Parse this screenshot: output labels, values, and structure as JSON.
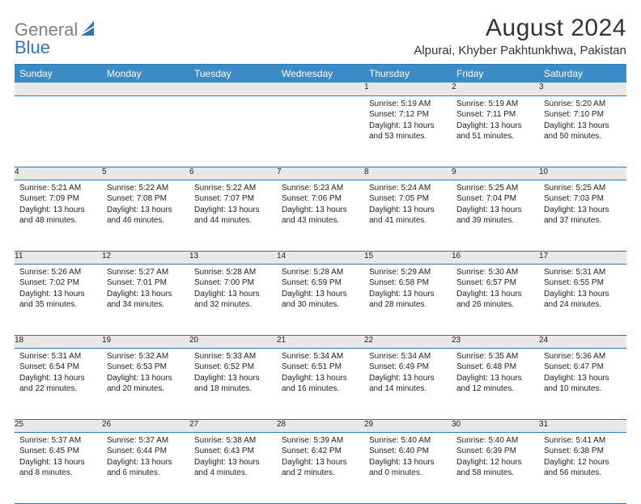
{
  "logo": {
    "text_gray": "General",
    "text_blue": "Blue"
  },
  "header": {
    "month_title": "August 2024",
    "location": "Alpurai, Khyber Pakhtunkhwa, Pakistan"
  },
  "colors": {
    "header_bg": "#3b8bc7",
    "header_border": "#2f75b5",
    "daynum_bg": "#e8e8e8",
    "logo_blue": "#2f75b5",
    "logo_gray": "#808080"
  },
  "day_headers": [
    "Sunday",
    "Monday",
    "Tuesday",
    "Wednesday",
    "Thursday",
    "Friday",
    "Saturday"
  ],
  "weeks": [
    {
      "nums": [
        "",
        "",
        "",
        "",
        "1",
        "2",
        "3"
      ],
      "cells": [
        null,
        null,
        null,
        null,
        {
          "sunrise": "Sunrise: 5:19 AM",
          "sunset": "Sunset: 7:12 PM",
          "daylight": "Daylight: 13 hours and 53 minutes."
        },
        {
          "sunrise": "Sunrise: 5:19 AM",
          "sunset": "Sunset: 7:11 PM",
          "daylight": "Daylight: 13 hours and 51 minutes."
        },
        {
          "sunrise": "Sunrise: 5:20 AM",
          "sunset": "Sunset: 7:10 PM",
          "daylight": "Daylight: 13 hours and 50 minutes."
        }
      ]
    },
    {
      "nums": [
        "4",
        "5",
        "6",
        "7",
        "8",
        "9",
        "10"
      ],
      "cells": [
        {
          "sunrise": "Sunrise: 5:21 AM",
          "sunset": "Sunset: 7:09 PM",
          "daylight": "Daylight: 13 hours and 48 minutes."
        },
        {
          "sunrise": "Sunrise: 5:22 AM",
          "sunset": "Sunset: 7:08 PM",
          "daylight": "Daylight: 13 hours and 46 minutes."
        },
        {
          "sunrise": "Sunrise: 5:22 AM",
          "sunset": "Sunset: 7:07 PM",
          "daylight": "Daylight: 13 hours and 44 minutes."
        },
        {
          "sunrise": "Sunrise: 5:23 AM",
          "sunset": "Sunset: 7:06 PM",
          "daylight": "Daylight: 13 hours and 43 minutes."
        },
        {
          "sunrise": "Sunrise: 5:24 AM",
          "sunset": "Sunset: 7:05 PM",
          "daylight": "Daylight: 13 hours and 41 minutes."
        },
        {
          "sunrise": "Sunrise: 5:25 AM",
          "sunset": "Sunset: 7:04 PM",
          "daylight": "Daylight: 13 hours and 39 minutes."
        },
        {
          "sunrise": "Sunrise: 5:25 AM",
          "sunset": "Sunset: 7:03 PM",
          "daylight": "Daylight: 13 hours and 37 minutes."
        }
      ]
    },
    {
      "nums": [
        "11",
        "12",
        "13",
        "14",
        "15",
        "16",
        "17"
      ],
      "cells": [
        {
          "sunrise": "Sunrise: 5:26 AM",
          "sunset": "Sunset: 7:02 PM",
          "daylight": "Daylight: 13 hours and 35 minutes."
        },
        {
          "sunrise": "Sunrise: 5:27 AM",
          "sunset": "Sunset: 7:01 PM",
          "daylight": "Daylight: 13 hours and 34 minutes."
        },
        {
          "sunrise": "Sunrise: 5:28 AM",
          "sunset": "Sunset: 7:00 PM",
          "daylight": "Daylight: 13 hours and 32 minutes."
        },
        {
          "sunrise": "Sunrise: 5:28 AM",
          "sunset": "Sunset: 6:59 PM",
          "daylight": "Daylight: 13 hours and 30 minutes."
        },
        {
          "sunrise": "Sunrise: 5:29 AM",
          "sunset": "Sunset: 6:58 PM",
          "daylight": "Daylight: 13 hours and 28 minutes."
        },
        {
          "sunrise": "Sunrise: 5:30 AM",
          "sunset": "Sunset: 6:57 PM",
          "daylight": "Daylight: 13 hours and 26 minutes."
        },
        {
          "sunrise": "Sunrise: 5:31 AM",
          "sunset": "Sunset: 6:55 PM",
          "daylight": "Daylight: 13 hours and 24 minutes."
        }
      ]
    },
    {
      "nums": [
        "18",
        "19",
        "20",
        "21",
        "22",
        "23",
        "24"
      ],
      "cells": [
        {
          "sunrise": "Sunrise: 5:31 AM",
          "sunset": "Sunset: 6:54 PM",
          "daylight": "Daylight: 13 hours and 22 minutes."
        },
        {
          "sunrise": "Sunrise: 5:32 AM",
          "sunset": "Sunset: 6:53 PM",
          "daylight": "Daylight: 13 hours and 20 minutes."
        },
        {
          "sunrise": "Sunrise: 5:33 AM",
          "sunset": "Sunset: 6:52 PM",
          "daylight": "Daylight: 13 hours and 18 minutes."
        },
        {
          "sunrise": "Sunrise: 5:34 AM",
          "sunset": "Sunset: 6:51 PM",
          "daylight": "Daylight: 13 hours and 16 minutes."
        },
        {
          "sunrise": "Sunrise: 5:34 AM",
          "sunset": "Sunset: 6:49 PM",
          "daylight": "Daylight: 13 hours and 14 minutes."
        },
        {
          "sunrise": "Sunrise: 5:35 AM",
          "sunset": "Sunset: 6:48 PM",
          "daylight": "Daylight: 13 hours and 12 minutes."
        },
        {
          "sunrise": "Sunrise: 5:36 AM",
          "sunset": "Sunset: 6:47 PM",
          "daylight": "Daylight: 13 hours and 10 minutes."
        }
      ]
    },
    {
      "nums": [
        "25",
        "26",
        "27",
        "28",
        "29",
        "30",
        "31"
      ],
      "cells": [
        {
          "sunrise": "Sunrise: 5:37 AM",
          "sunset": "Sunset: 6:45 PM",
          "daylight": "Daylight: 13 hours and 8 minutes."
        },
        {
          "sunrise": "Sunrise: 5:37 AM",
          "sunset": "Sunset: 6:44 PM",
          "daylight": "Daylight: 13 hours and 6 minutes."
        },
        {
          "sunrise": "Sunrise: 5:38 AM",
          "sunset": "Sunset: 6:43 PM",
          "daylight": "Daylight: 13 hours and 4 minutes."
        },
        {
          "sunrise": "Sunrise: 5:39 AM",
          "sunset": "Sunset: 6:42 PM",
          "daylight": "Daylight: 13 hours and 2 minutes."
        },
        {
          "sunrise": "Sunrise: 5:40 AM",
          "sunset": "Sunset: 6:40 PM",
          "daylight": "Daylight: 13 hours and 0 minutes."
        },
        {
          "sunrise": "Sunrise: 5:40 AM",
          "sunset": "Sunset: 6:39 PM",
          "daylight": "Daylight: 12 hours and 58 minutes."
        },
        {
          "sunrise": "Sunrise: 5:41 AM",
          "sunset": "Sunset: 6:38 PM",
          "daylight": "Daylight: 12 hours and 56 minutes."
        }
      ]
    }
  ]
}
